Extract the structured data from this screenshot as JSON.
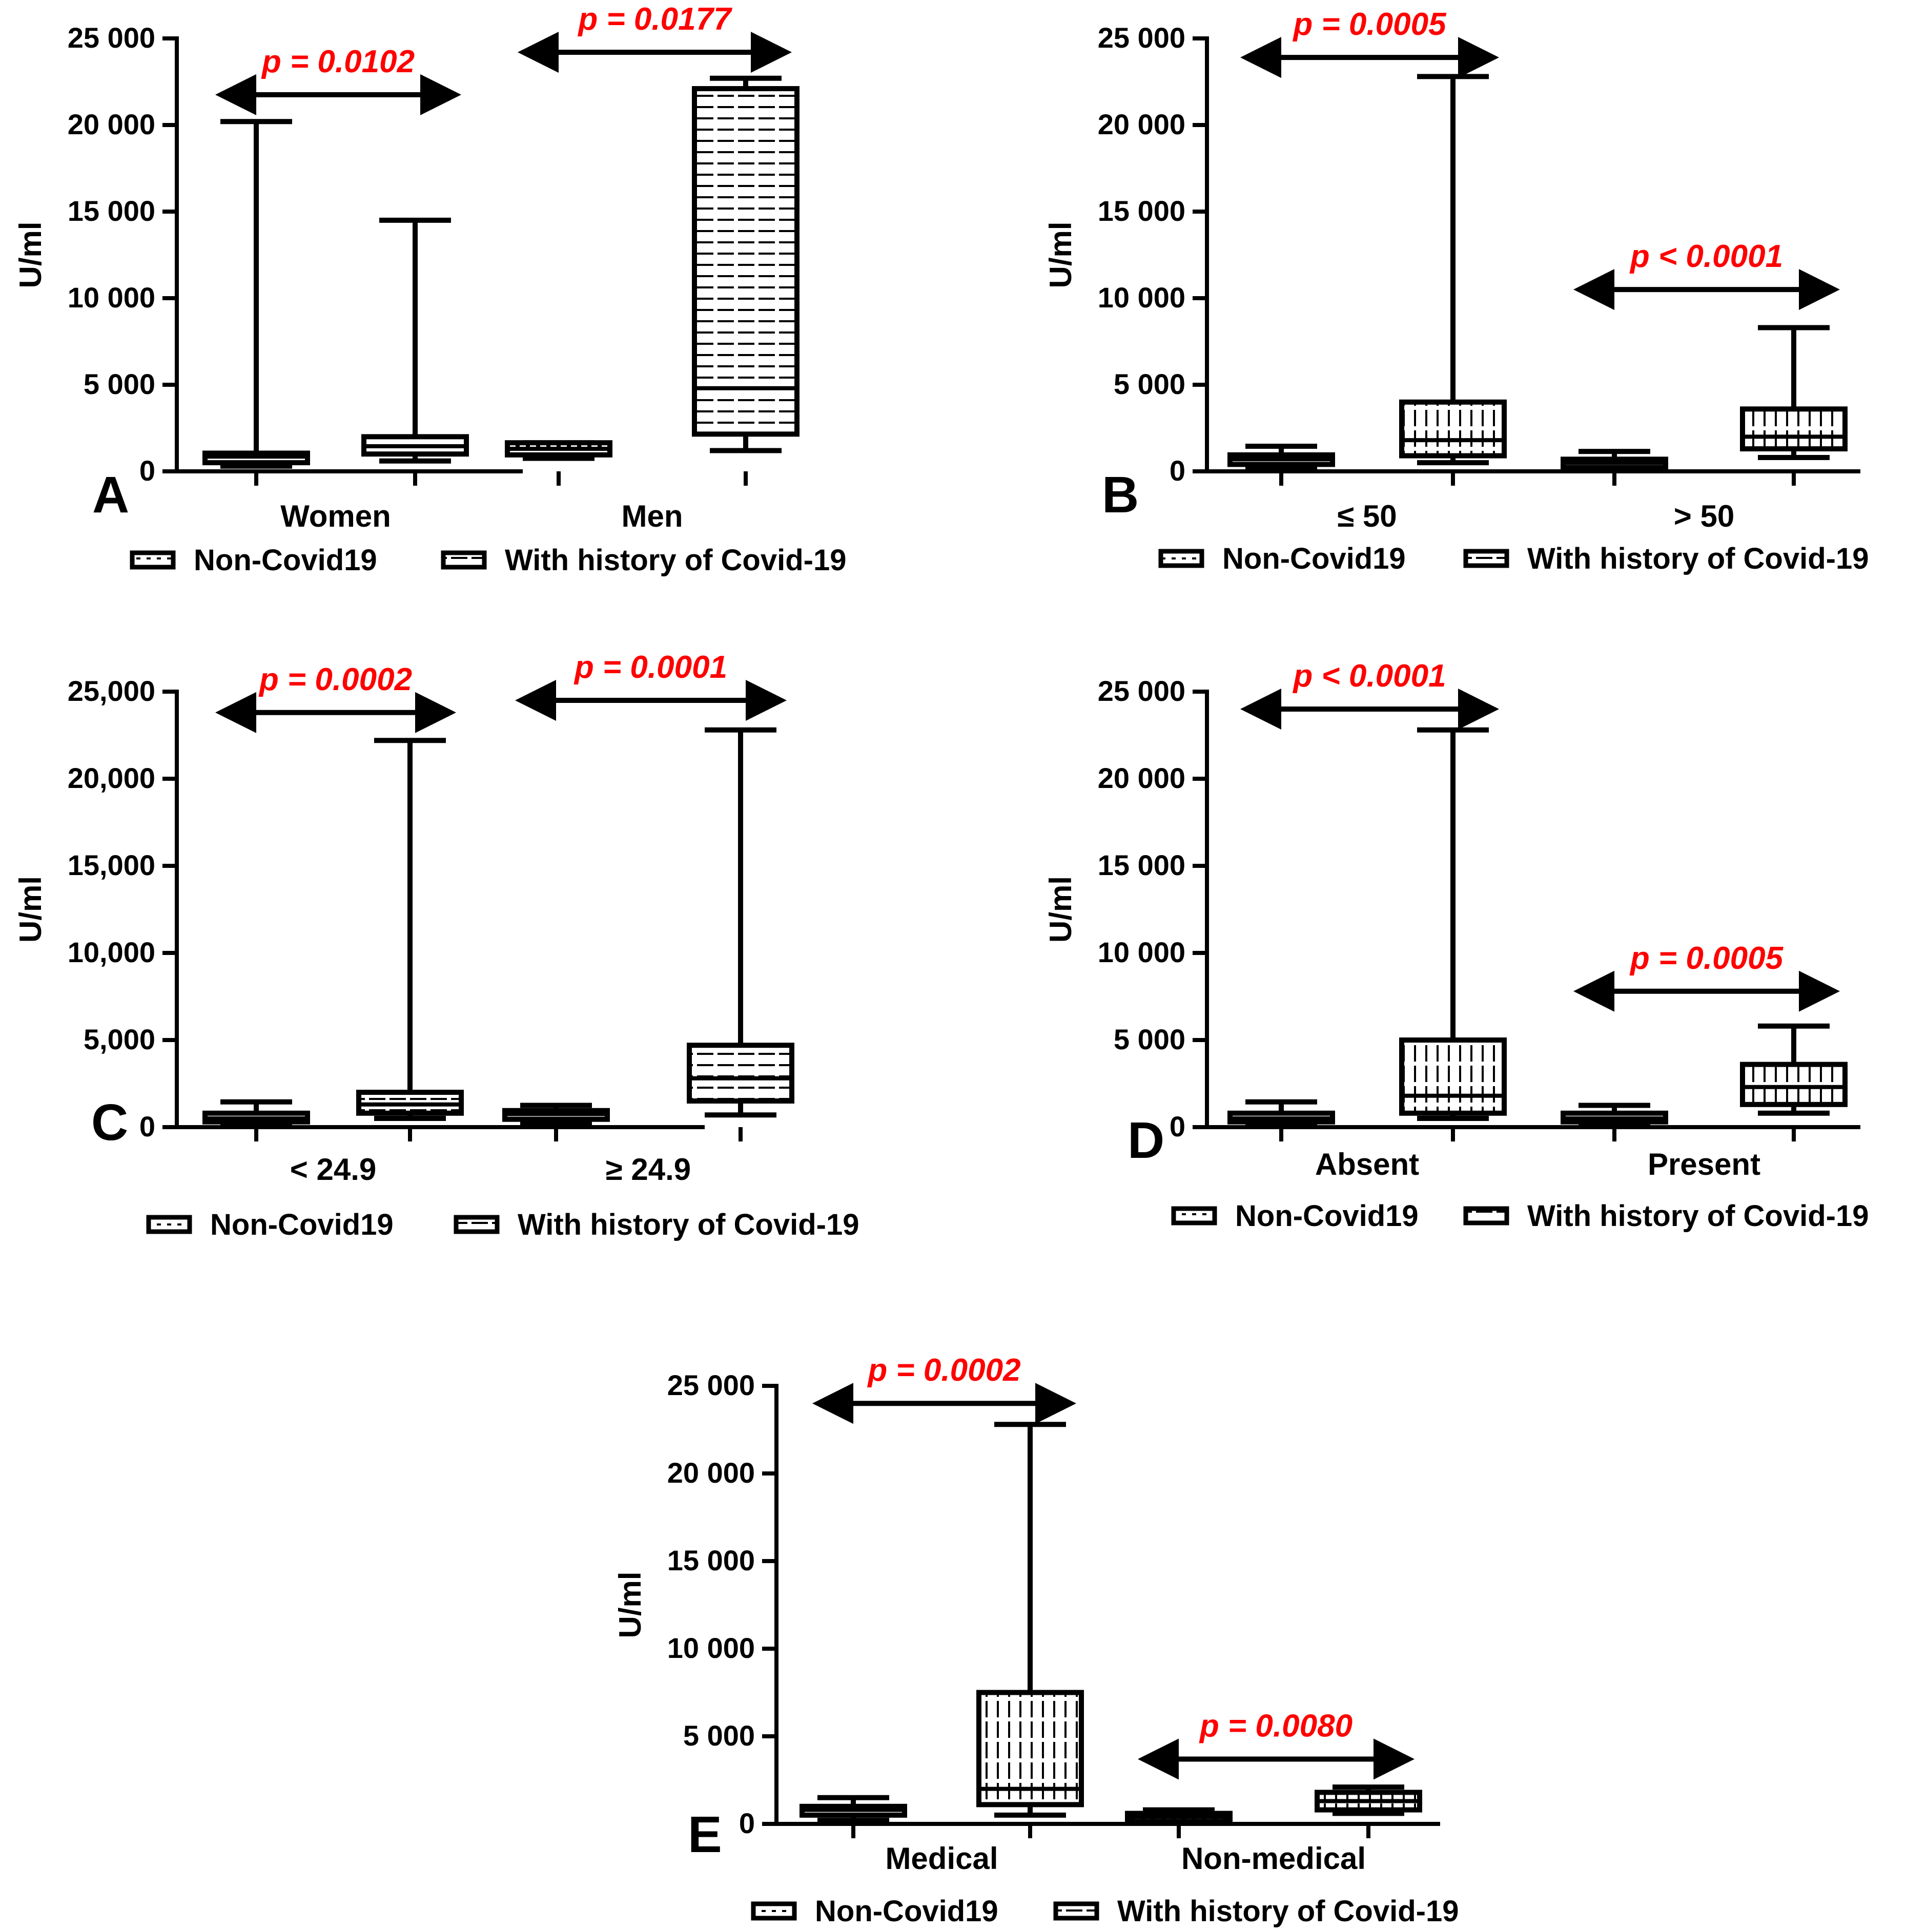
{
  "colors": {
    "ink": "#000000",
    "pvalue": "#ff0000",
    "background": "#ffffff"
  },
  "chart_data": [
    {
      "type": "box",
      "panel_label": "A",
      "ylabel": "U/ml",
      "ylim": [
        0,
        25000
      ],
      "yticks": [
        0,
        5000,
        10000,
        15000,
        20000,
        25000
      ],
      "ytick_labels": [
        "0",
        "5 000",
        "10 000",
        "15 000",
        "20 000",
        "25 000"
      ],
      "categories": [
        "Women",
        "Men"
      ],
      "legend": [
        "Non-Covid19",
        "With history of Covid-19"
      ],
      "series": [
        {
          "name": "Non-Covid19",
          "fill": "dots",
          "boxes": [
            {
              "min": 300,
              "q1": 500,
              "median": 850,
              "q3": 1050,
              "max": 20200
            },
            {
              "min": 750,
              "q1": 950,
              "median": 1300,
              "q3": 1650,
              "max": 1650
            }
          ]
        },
        {
          "name": "With history of Covid-19",
          "fill": "hstripes",
          "boxes": [
            {
              "min": 600,
              "q1": 1000,
              "median": 1450,
              "q3": 2000,
              "max": 14500
            },
            {
              "min": 1200,
              "q1": 2150,
              "median": 4800,
              "q3": 22100,
              "max": 22700
            }
          ]
        }
      ],
      "pvalues": [
        {
          "text": "p = 0.0102",
          "category_index": 0,
          "level": 21750
        },
        {
          "text": "p = 0.0177",
          "category_index": 1,
          "level": 24200
        }
      ]
    },
    {
      "type": "box",
      "panel_label": "B",
      "ylabel": "U/ml",
      "ylim": [
        0,
        25000
      ],
      "yticks": [
        0,
        5000,
        10000,
        15000,
        20000,
        25000
      ],
      "ytick_labels": [
        "0",
        "5 000",
        "10 000",
        "15 000",
        "20 000",
        "25 000"
      ],
      "categories": [
        "≤ 50",
        "> 50"
      ],
      "legend": [
        "Non-Covid19",
        "With history of Covid-19"
      ],
      "series": [
        {
          "name": "Non-Covid19",
          "fill": "dots",
          "boxes": [
            {
              "min": 200,
              "q1": 400,
              "median": 700,
              "q3": 950,
              "max": 1450
            },
            {
              "min": 100,
              "q1": 300,
              "median": 500,
              "q3": 700,
              "max": 1150
            }
          ]
        },
        {
          "name": "With history of Covid-19",
          "fill": "vstripes",
          "boxes": [
            {
              "min": 500,
              "q1": 900,
              "median": 1800,
              "q3": 4000,
              "max": 22800
            },
            {
              "min": 800,
              "q1": 1300,
              "median": 2000,
              "q3": 3600,
              "max": 8300
            }
          ]
        }
      ],
      "pvalues": [
        {
          "text": "p = 0.0005",
          "category_index": 0,
          "level": 23900
        },
        {
          "text": "p < 0.0001",
          "category_index": 1,
          "level": 10500
        }
      ]
    },
    {
      "type": "box",
      "panel_label": "C",
      "ylabel": "U/ml",
      "ylim": [
        0,
        25000
      ],
      "yticks": [
        0,
        5000,
        10000,
        15000,
        20000,
        25000
      ],
      "ytick_labels": [
        "0",
        "5,000",
        "10,000",
        "15,000",
        "20,000",
        "25,000"
      ],
      "categories": [
        "< 24.9",
        "≥ 24.9"
      ],
      "legend": [
        "Non-Covid19",
        "With history of Covid-19"
      ],
      "series": [
        {
          "name": "Non-Covid19",
          "fill": "dots",
          "boxes": [
            {
              "min": 100,
              "q1": 300,
              "median": 500,
              "q3": 800,
              "max": 1450
            },
            {
              "min": 200,
              "q1": 450,
              "median": 750,
              "q3": 950,
              "max": 1250
            }
          ]
        },
        {
          "name": "With history of Covid-19",
          "fill": "hstripes",
          "boxes": [
            {
              "min": 500,
              "q1": 800,
              "median": 1300,
              "q3": 2000,
              "max": 22200
            },
            {
              "min": 700,
              "q1": 1500,
              "median": 2800,
              "q3": 4700,
              "max": 22800
            }
          ]
        }
      ],
      "pvalues": [
        {
          "text": "p = 0.0002",
          "category_index": 0,
          "level": 23800
        },
        {
          "text": "p = 0.0001",
          "category_index": 1,
          "level": 24500
        }
      ]
    },
    {
      "type": "box",
      "panel_label": "D",
      "ylabel": "U/ml",
      "ylim": [
        0,
        25000
      ],
      "yticks": [
        0,
        5000,
        10000,
        15000,
        20000,
        25000
      ],
      "ytick_labels": [
        "0",
        "5 000",
        "10 000",
        "15 000",
        "20 000",
        "25 000"
      ],
      "categories": [
        "Absent",
        "Present"
      ],
      "legend": [
        "Non-Covid19",
        "With history of Covid-19"
      ],
      "series": [
        {
          "name": "Non-Covid19",
          "fill": "dots",
          "boxes": [
            {
              "min": 100,
              "q1": 300,
              "median": 500,
              "q3": 800,
              "max": 1450
            },
            {
              "min": 100,
              "q1": 300,
              "median": 500,
              "q3": 800,
              "max": 1250
            }
          ]
        },
        {
          "name": "With history of Covid-19",
          "fill": "vstripes",
          "boxes": [
            {
              "min": 500,
              "q1": 800,
              "median": 1800,
              "q3": 5000,
              "max": 22800
            },
            {
              "min": 800,
              "q1": 1300,
              "median": 2300,
              "q3": 3600,
              "max": 5800
            }
          ]
        }
      ],
      "pvalues": [
        {
          "text": "p < 0.0001",
          "category_index": 0,
          "level": 24000
        },
        {
          "text": "p = 0.0005",
          "category_index": 1,
          "level": 7800
        }
      ]
    },
    {
      "type": "box",
      "panel_label": "E",
      "ylabel": "U/ml",
      "ylim": [
        0,
        25000
      ],
      "yticks": [
        0,
        5000,
        10000,
        15000,
        20000,
        25000
      ],
      "ytick_labels": [
        "0",
        "5 000",
        "10 000",
        "15 000",
        "20 000",
        "25 000"
      ],
      "categories": [
        "Medical",
        "Non-medical"
      ],
      "legend": [
        "Non-Covid19",
        "With history of Covid-19"
      ],
      "series": [
        {
          "name": "Non-Covid19",
          "fill": "dots",
          "boxes": [
            {
              "min": 200,
              "q1": 500,
              "median": 800,
              "q3": 1000,
              "max": 1500
            },
            {
              "min": 100,
              "q1": 200,
              "median": 400,
              "q3": 600,
              "max": 800
            }
          ]
        },
        {
          "name": "With history of Covid-19",
          "fill": "vstripes",
          "boxes": [
            {
              "min": 500,
              "q1": 1100,
              "median": 2000,
              "q3": 7500,
              "max": 22800
            },
            {
              "min": 600,
              "q1": 800,
              "median": 1300,
              "q3": 1800,
              "max": 2100
            }
          ]
        }
      ],
      "pvalues": [
        {
          "text": "p = 0.0002",
          "category_index": 0,
          "level": 24000
        },
        {
          "text": "p = 0.0080",
          "category_index": 1,
          "level": 3700
        }
      ]
    }
  ]
}
